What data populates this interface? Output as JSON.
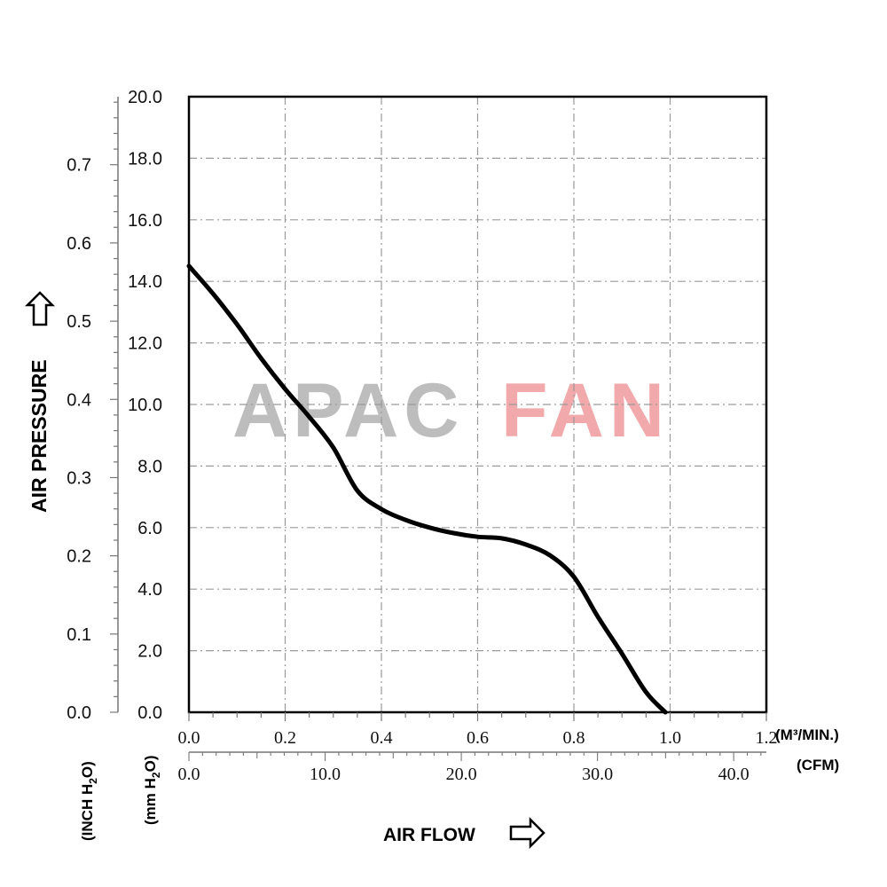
{
  "chart_data": {
    "type": "line",
    "title": "",
    "grid": true,
    "colors": {
      "curve": "#000000",
      "grid": "#9a9a9a",
      "watermark_apac": "#bdbdbd",
      "watermark_fan": "#f1a9ab"
    },
    "watermark": {
      "part1": "APAC",
      "part2": "FAN"
    },
    "y_axis_label": "AIR PRESSURE",
    "x_axis_label": "AIR FLOW",
    "y_axes": {
      "inch_h2o": {
        "unit_label": "(INCH H2O)",
        "unit_main": "(INCH H",
        "unit_sub": "2",
        "unit_end": "O)",
        "range": [
          0,
          0.787
        ],
        "ticks": [
          "0.0",
          "0.1",
          "0.2",
          "0.3",
          "0.4",
          "0.5",
          "0.6",
          "0.7"
        ]
      },
      "mm_h2o": {
        "unit_label": "(mm H2O)",
        "unit_main": "(mm H",
        "unit_sub": "2",
        "unit_end": "O)",
        "range": [
          0,
          20
        ],
        "ticks": [
          "0.0",
          "2.0",
          "4.0",
          "6.0",
          "8.0",
          "10.0",
          "12.0",
          "14.0",
          "16.0",
          "18.0",
          "20.0"
        ]
      }
    },
    "x_axes": {
      "m3_min": {
        "unit_label": "(M³/MIN.)",
        "range": [
          0,
          1.2
        ],
        "ticks": [
          "0.0",
          "0.2",
          "0.4",
          "0.6",
          "0.8",
          "1.0",
          "1.2"
        ]
      },
      "cfm": {
        "unit_label": "(CFM)",
        "range": [
          0,
          42.4
        ],
        "ticks": [
          "0.0",
          "10.0",
          "20.0",
          "30.0",
          "40.0"
        ]
      }
    },
    "series": [
      {
        "x_unit": "M3/MIN",
        "y_unit": "mm H2O",
        "points": [
          [
            0.0,
            14.5
          ],
          [
            0.05,
            13.6
          ],
          [
            0.1,
            12.6
          ],
          [
            0.15,
            11.5
          ],
          [
            0.2,
            10.5
          ],
          [
            0.25,
            9.6
          ],
          [
            0.3,
            8.6
          ],
          [
            0.35,
            7.2
          ],
          [
            0.4,
            6.6
          ],
          [
            0.45,
            6.25
          ],
          [
            0.5,
            6.0
          ],
          [
            0.55,
            5.82
          ],
          [
            0.6,
            5.7
          ],
          [
            0.65,
            5.65
          ],
          [
            0.7,
            5.45
          ],
          [
            0.75,
            5.1
          ],
          [
            0.8,
            4.4
          ],
          [
            0.85,
            3.1
          ],
          [
            0.9,
            1.9
          ],
          [
            0.95,
            0.65
          ],
          [
            0.99,
            0.0
          ]
        ]
      }
    ]
  }
}
